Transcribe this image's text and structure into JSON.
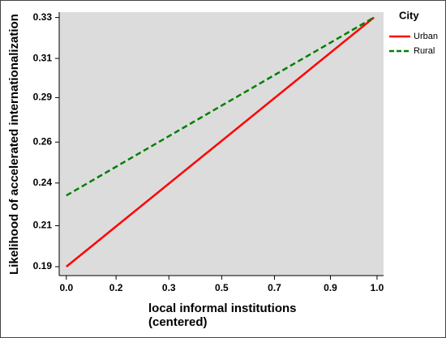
{
  "chart_data": {
    "type": "line",
    "x_label": [
      "local informal institutions",
      "(centered)"
    ],
    "y_label": "Likelihood of accelerated internationalization",
    "legend_title": "City",
    "legend_position": "right",
    "x": [
      0,
      0.99
    ],
    "series": [
      {
        "name": "Urban",
        "color": "#ff0000",
        "dash": "solid",
        "values": [
          0.19,
          0.33
        ]
      },
      {
        "name": "Rural",
        "color": "#008000",
        "dash": "dashed",
        "values": [
          0.23,
          0.33
        ]
      }
    ],
    "xlim": [
      -0.023,
      1.021
    ],
    "ylim": [
      0.185,
      0.333
    ],
    "xticks": [
      {
        "value": 0,
        "label": "0.0"
      },
      {
        "value": 0.16,
        "label": "0.2"
      },
      {
        "value": 0.33,
        "label": "0.3"
      },
      {
        "value": 0.5,
        "label": "0.5"
      },
      {
        "value": 0.67,
        "label": "0.7"
      },
      {
        "value": 0.85,
        "label": "0.9"
      },
      {
        "value": 1.0,
        "label": "1.0"
      }
    ],
    "yticks": [
      0.19,
      {
        "value": 0.213,
        "label": "0.21"
      },
      {
        "value": 0.237,
        "label": "0.24"
      },
      0.26,
      {
        "value": 0.285,
        "label": "0.29"
      },
      {
        "value": 0.307,
        "label": "0.31"
      },
      0.33
    ],
    "background": "#dcdcdc"
  }
}
